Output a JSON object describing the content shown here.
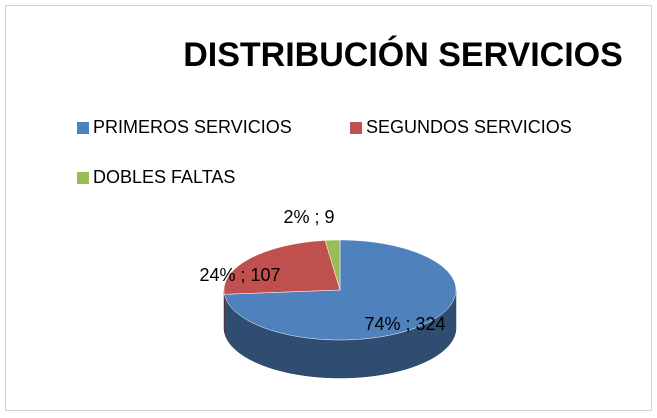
{
  "chart_data": {
    "type": "pie",
    "title": "DISTRIBUCIÓN SERVICIOS",
    "categories": [
      "PRIMEROS SERVICIOS",
      "SEGUNDOS SERVICIOS",
      "DOBLES FALTAS"
    ],
    "values": [
      324,
      107,
      9
    ],
    "value_labels": [
      "74% ; 324",
      "24% ; 107",
      "2% ; 9"
    ],
    "colors": [
      "#4f81bd",
      "#c0504d",
      "#9bbb59"
    ],
    "legend": "top"
  }
}
